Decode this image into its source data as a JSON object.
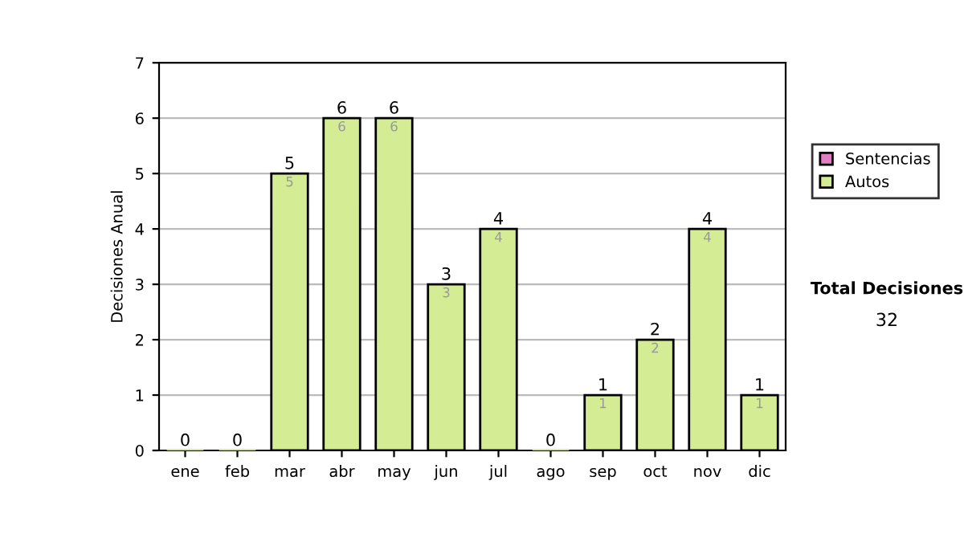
{
  "chart_data": {
    "type": "bar",
    "stacked": true,
    "ylabel": "Decisiones Anual",
    "categories": [
      "ene",
      "feb",
      "mar",
      "abr",
      "may",
      "jun",
      "jul",
      "ago",
      "sep",
      "oct",
      "nov",
      "dic"
    ],
    "series": [
      {
        "name": "Sentencias",
        "color": "#e07fc4",
        "values": [
          0,
          0,
          0,
          0,
          0,
          0,
          0,
          0,
          0,
          0,
          0,
          0
        ]
      },
      {
        "name": "Autos",
        "color": "#d4ec94",
        "values": [
          0,
          0,
          5,
          6,
          6,
          3,
          4,
          0,
          1,
          2,
          4,
          1
        ],
        "value_labels": [
          null,
          null,
          "5",
          "6",
          "6",
          "3",
          "4",
          null,
          "1",
          "2",
          "4",
          "1"
        ]
      }
    ],
    "totals": [
      "0",
      "0",
      "5",
      "6",
      "6",
      "3",
      "4",
      "0",
      "1",
      "2",
      "4",
      "1"
    ],
    "ylim": [
      0,
      7
    ],
    "yticks": [
      0,
      1,
      2,
      3,
      4,
      5,
      6,
      7
    ],
    "grid": "y",
    "legend": "right",
    "annotations": [
      "Total Decisiones",
      "32"
    ]
  }
}
